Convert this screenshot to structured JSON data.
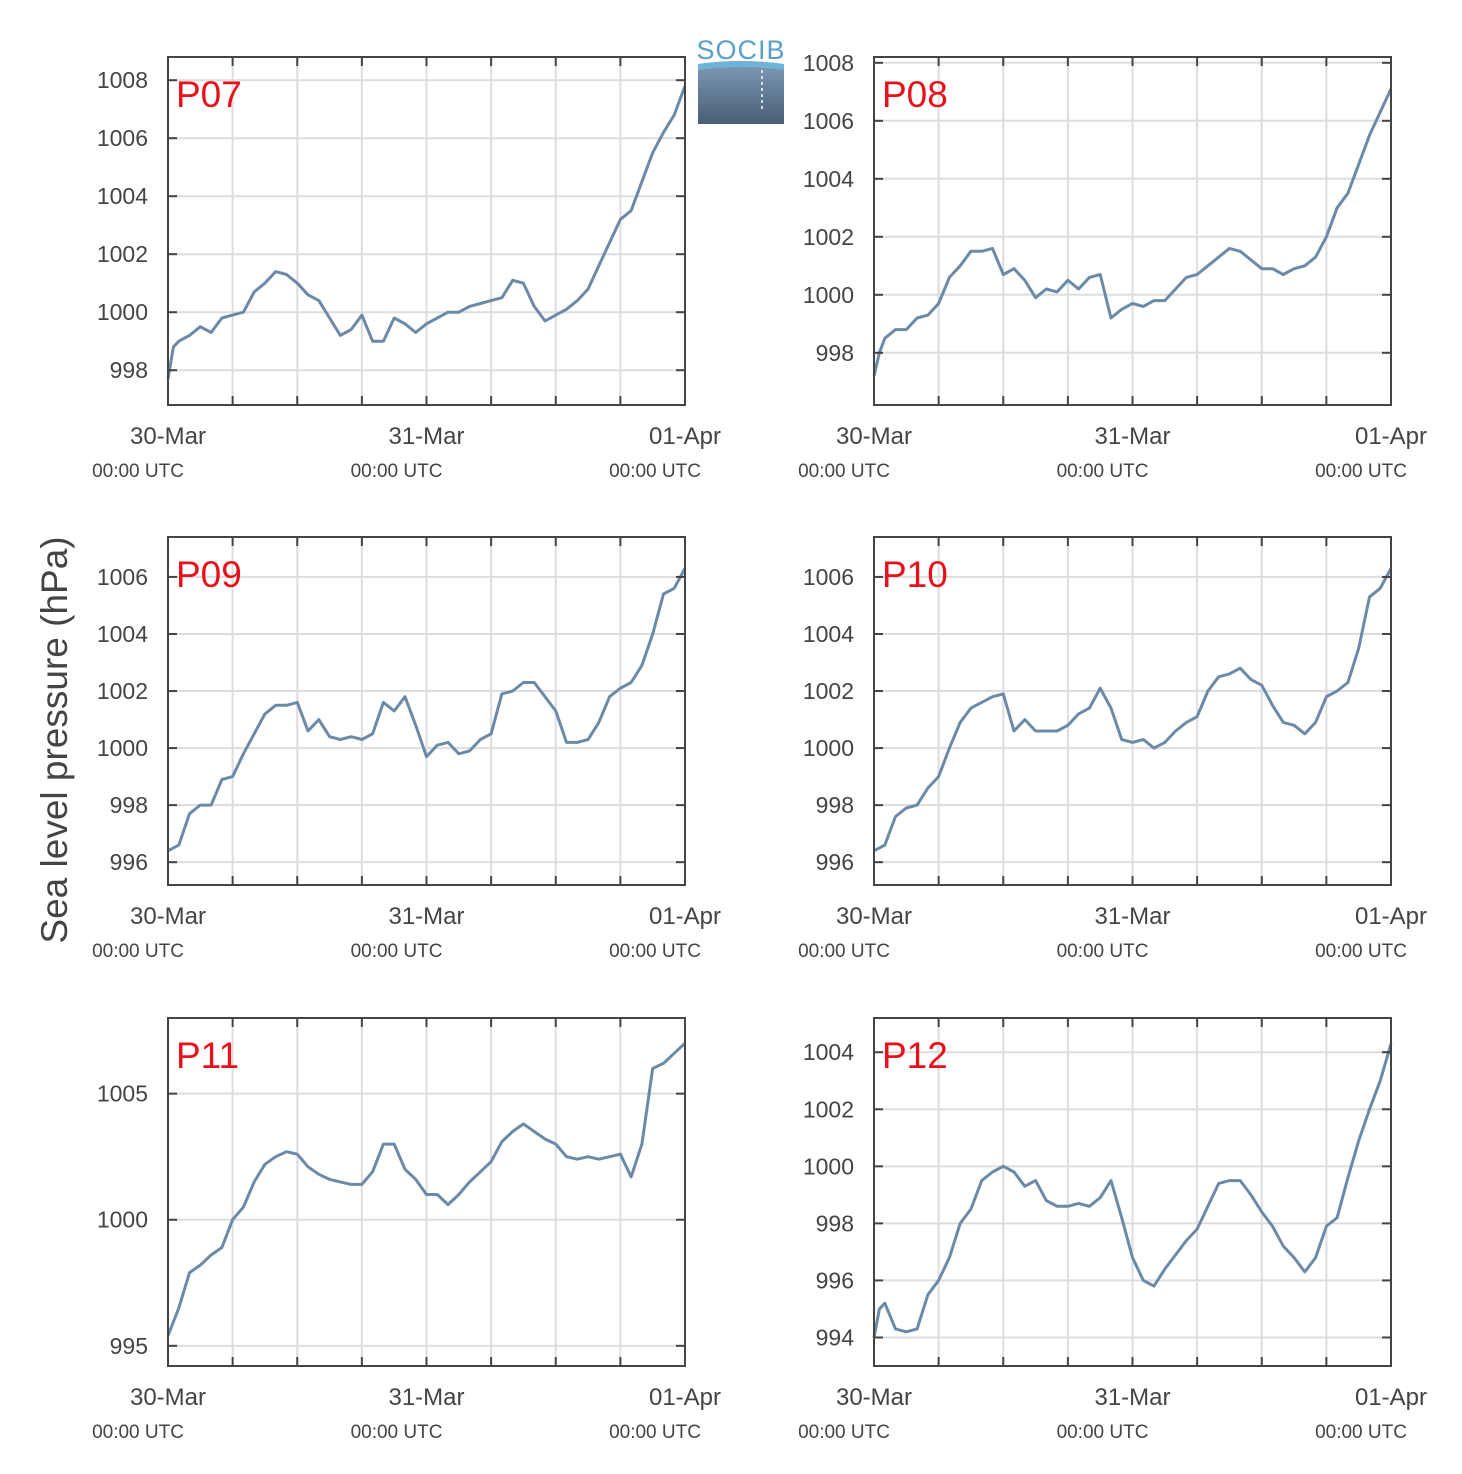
{
  "figure": {
    "ylabel": "Sea level pressure (hPa)",
    "logo_text": "SOCIB",
    "line_color": "#6b8aa8",
    "station_label_color": "#e8101a",
    "x_ticks": [
      {
        "t": 0,
        "label": "30-Mar",
        "sub": "00:00 UTC"
      },
      {
        "t": 24,
        "label": "31-Mar",
        "sub": "00:00 UTC"
      },
      {
        "t": 48,
        "label": "01-Apr",
        "sub": "00:00 UTC"
      }
    ],
    "x_minor": [
      6,
      12,
      18,
      30,
      36,
      42
    ]
  },
  "chart_data": [
    {
      "type": "line",
      "title": "P07",
      "x_unit": "hours since 30-Mar 00:00 UTC",
      "xlim": [
        0,
        48
      ],
      "ylim": [
        996.8,
        1008.8
      ],
      "yticks": [
        998,
        1000,
        1002,
        1004,
        1006,
        1008
      ],
      "x": [
        0,
        0.5,
        1,
        2,
        3,
        4,
        5,
        6,
        7,
        8,
        9,
        10,
        11,
        12,
        13,
        14,
        15,
        16,
        17,
        18,
        19,
        20,
        21,
        22,
        23,
        24,
        25,
        26,
        27,
        28,
        29,
        30,
        31,
        32,
        33,
        34,
        35,
        36,
        37,
        38,
        39,
        40,
        41,
        42,
        43,
        44,
        45,
        46,
        47,
        48
      ],
      "y": [
        997.7,
        998.8,
        999.0,
        999.2,
        999.5,
        999.3,
        999.8,
        999.9,
        1000.0,
        1000.7,
        1001.0,
        1001.4,
        1001.3,
        1001.0,
        1000.6,
        1000.4,
        999.8,
        999.2,
        999.4,
        999.9,
        999.0,
        999.0,
        999.8,
        999.6,
        999.3,
        999.6,
        999.8,
        1000.0,
        1000.0,
        1000.2,
        1000.3,
        1000.4,
        1000.5,
        1001.1,
        1001.0,
        1000.2,
        999.7,
        999.9,
        1000.1,
        1000.4,
        1000.8,
        1001.6,
        1002.4,
        1003.2,
        1003.5,
        1004.5,
        1005.5,
        1006.2,
        1006.8,
        1007.8
      ]
    },
    {
      "type": "line",
      "title": "P08",
      "x_unit": "hours since 30-Mar 00:00 UTC",
      "xlim": [
        0,
        48
      ],
      "ylim": [
        996.2,
        1008.2
      ],
      "yticks": [
        998,
        1000,
        1002,
        1004,
        1006,
        1008
      ],
      "x": [
        0,
        0.5,
        1,
        2,
        3,
        4,
        5,
        6,
        7,
        8,
        9,
        10,
        11,
        12,
        13,
        14,
        15,
        16,
        17,
        18,
        19,
        20,
        21,
        22,
        23,
        24,
        25,
        26,
        27,
        28,
        29,
        30,
        31,
        32,
        33,
        34,
        35,
        36,
        37,
        38,
        39,
        40,
        41,
        42,
        43,
        44,
        45,
        46,
        47,
        48
      ],
      "y": [
        997.2,
        998.0,
        998.5,
        998.8,
        998.8,
        999.2,
        999.3,
        999.7,
        1000.6,
        1001.0,
        1001.5,
        1001.5,
        1001.6,
        1000.7,
        1000.9,
        1000.5,
        999.9,
        1000.2,
        1000.1,
        1000.5,
        1000.2,
        1000.6,
        1000.7,
        999.2,
        999.5,
        999.7,
        999.6,
        999.8,
        999.8,
        1000.2,
        1000.6,
        1000.7,
        1001.0,
        1001.3,
        1001.6,
        1001.5,
        1001.2,
        1000.9,
        1000.9,
        1000.7,
        1000.9,
        1001.0,
        1001.3,
        1002.0,
        1003.0,
        1003.5,
        1004.5,
        1005.5,
        1006.3,
        1007.1
      ]
    },
    {
      "type": "line",
      "title": "P09",
      "x_unit": "hours since 30-Mar 00:00 UTC",
      "xlim": [
        0,
        48
      ],
      "ylim": [
        995.2,
        1007.4
      ],
      "yticks": [
        996,
        998,
        1000,
        1002,
        1004,
        1006
      ],
      "x": [
        0,
        1,
        2,
        3,
        4,
        5,
        6,
        7,
        8,
        9,
        10,
        11,
        12,
        13,
        14,
        15,
        16,
        17,
        18,
        19,
        20,
        21,
        22,
        23,
        24,
        25,
        26,
        27,
        28,
        29,
        30,
        31,
        32,
        33,
        34,
        35,
        36,
        37,
        38,
        39,
        40,
        41,
        42,
        43,
        44,
        45,
        46,
        47,
        48
      ],
      "y": [
        996.4,
        996.6,
        997.7,
        998.0,
        998.0,
        998.9,
        999.0,
        999.8,
        1000.5,
        1001.2,
        1001.5,
        1001.5,
        1001.6,
        1000.6,
        1001.0,
        1000.4,
        1000.3,
        1000.4,
        1000.3,
        1000.5,
        1001.6,
        1001.3,
        1001.8,
        1000.8,
        999.7,
        1000.1,
        1000.2,
        999.8,
        999.9,
        1000.3,
        1000.5,
        1001.9,
        1002.0,
        1002.3,
        1002.3,
        1001.8,
        1001.3,
        1000.2,
        1000.2,
        1000.3,
        1000.9,
        1001.8,
        1002.1,
        1002.3,
        1002.9,
        1004.0,
        1005.4,
        1005.6,
        1006.3
      ]
    },
    {
      "type": "line",
      "title": "P10",
      "x_unit": "hours since 30-Mar 00:00 UTC",
      "xlim": [
        0,
        48
      ],
      "ylim": [
        995.2,
        1007.4
      ],
      "yticks": [
        996,
        998,
        1000,
        1002,
        1004,
        1006
      ],
      "x": [
        0,
        1,
        2,
        3,
        4,
        5,
        6,
        7,
        8,
        9,
        10,
        11,
        12,
        13,
        14,
        15,
        16,
        17,
        18,
        19,
        20,
        21,
        22,
        23,
        24,
        25,
        26,
        27,
        28,
        29,
        30,
        31,
        32,
        33,
        34,
        35,
        36,
        37,
        38,
        39,
        40,
        41,
        42,
        43,
        44,
        45,
        46,
        47,
        48
      ],
      "y": [
        996.4,
        996.6,
        997.6,
        997.9,
        998.0,
        998.6,
        999.0,
        1000.0,
        1000.9,
        1001.4,
        1001.6,
        1001.8,
        1001.9,
        1000.6,
        1001.0,
        1000.6,
        1000.6,
        1000.6,
        1000.8,
        1001.2,
        1001.4,
        1002.1,
        1001.4,
        1000.3,
        1000.2,
        1000.3,
        1000.0,
        1000.2,
        1000.6,
        1000.9,
        1001.1,
        1002.0,
        1002.5,
        1002.6,
        1002.8,
        1002.4,
        1002.2,
        1001.5,
        1000.9,
        1000.8,
        1000.5,
        1000.9,
        1001.8,
        1002.0,
        1002.3,
        1003.5,
        1005.3,
        1005.6,
        1006.3
      ]
    },
    {
      "type": "line",
      "title": "P11",
      "x_unit": "hours since 30-Mar 00:00 UTC",
      "xlim": [
        0,
        48
      ],
      "ylim": [
        994.2,
        1008.0
      ],
      "yticks": [
        995,
        1000,
        1005
      ],
      "x": [
        0,
        1,
        2,
        3,
        4,
        5,
        6,
        7,
        8,
        9,
        10,
        11,
        12,
        13,
        14,
        15,
        16,
        17,
        18,
        19,
        20,
        21,
        22,
        23,
        24,
        25,
        26,
        27,
        28,
        29,
        30,
        31,
        32,
        33,
        34,
        35,
        36,
        37,
        38,
        39,
        40,
        41,
        42,
        43,
        44,
        45,
        46,
        47,
        48
      ],
      "y": [
        995.4,
        996.5,
        997.9,
        998.2,
        998.6,
        998.9,
        1000.0,
        1000.5,
        1001.5,
        1002.2,
        1002.5,
        1002.7,
        1002.6,
        1002.1,
        1001.8,
        1001.6,
        1001.5,
        1001.4,
        1001.4,
        1001.9,
        1003.0,
        1003.0,
        1002.0,
        1001.6,
        1001.0,
        1001.0,
        1000.6,
        1001.0,
        1001.5,
        1001.9,
        1002.3,
        1003.1,
        1003.5,
        1003.8,
        1003.5,
        1003.2,
        1003.0,
        1002.5,
        1002.4,
        1002.5,
        1002.4,
        1002.5,
        1002.6,
        1001.7,
        1003.0,
        1006.0,
        1006.2,
        1006.6,
        1007.0
      ]
    },
    {
      "type": "line",
      "title": "P12",
      "x_unit": "hours since 30-Mar 00:00 UTC",
      "xlim": [
        0,
        48
      ],
      "ylim": [
        993.0,
        1005.2
      ],
      "yticks": [
        994,
        996,
        998,
        1000,
        1002,
        1004
      ],
      "x": [
        0,
        0.5,
        1,
        2,
        3,
        4,
        5,
        6,
        7,
        8,
        9,
        10,
        11,
        12,
        13,
        14,
        15,
        16,
        17,
        18,
        19,
        20,
        21,
        22,
        23,
        24,
        25,
        26,
        27,
        28,
        29,
        30,
        31,
        32,
        33,
        34,
        35,
        36,
        37,
        38,
        39,
        40,
        41,
        42,
        43,
        44,
        45,
        46,
        47,
        48
      ],
      "y": [
        994.0,
        995.0,
        995.2,
        994.3,
        994.2,
        994.3,
        995.5,
        996.0,
        996.8,
        998.0,
        998.5,
        999.5,
        999.8,
        1000.0,
        999.8,
        999.3,
        999.5,
        998.8,
        998.6,
        998.6,
        998.7,
        998.6,
        998.9,
        999.5,
        998.2,
        996.8,
        996.0,
        995.8,
        996.4,
        996.9,
        997.4,
        997.8,
        998.6,
        999.4,
        999.5,
        999.5,
        999.0,
        998.4,
        997.9,
        997.2,
        996.8,
        996.3,
        996.8,
        997.9,
        998.2,
        999.6,
        1000.9,
        1002.0,
        1003.0,
        1004.3
      ]
    }
  ]
}
